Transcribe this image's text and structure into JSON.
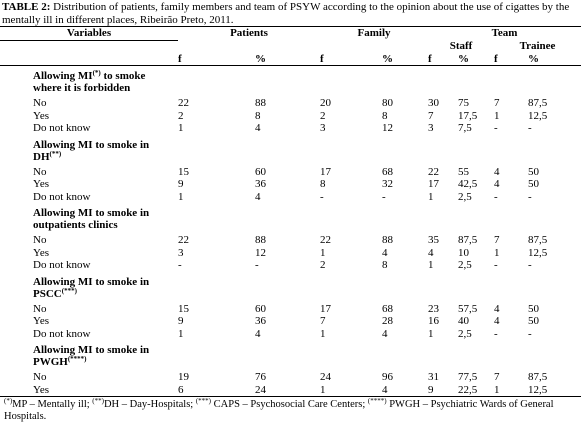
{
  "caption": {
    "label": "TABLE 2:",
    "text": " Distribution of patients, family members and team of PSYW according to the opinion about the use of cigattes by the mentally ill in different places, Ribeirão Preto, 2011."
  },
  "header": {
    "variables": "Variables",
    "groups": [
      "Patients",
      "Family",
      "Team"
    ],
    "subgroups": [
      "Staff",
      "Trainee"
    ],
    "columns": [
      "f",
      "%",
      "f",
      "%",
      "f",
      "%",
      "f",
      "%"
    ]
  },
  "sections": [
    {
      "title": [
        {
          "text": "Allowing MI"
        },
        {
          "text": "(*)",
          "sup": true
        },
        {
          "text": " to smoke where it is forbidden"
        }
      ],
      "rows": [
        [
          "No",
          "22",
          "88",
          "20",
          "80",
          "30",
          "75",
          "7",
          "87,5"
        ],
        [
          "Yes",
          "2",
          "8",
          "2",
          "8",
          "7",
          "17,5",
          "1",
          "12,5"
        ],
        [
          "Do not know",
          "1",
          "4",
          "3",
          "12",
          "3",
          "7,5",
          "-",
          "-"
        ]
      ]
    },
    {
      "title": [
        {
          "text": "Allowing MI to smoke in DH"
        },
        {
          "text": "(**)",
          "sup": true
        }
      ],
      "rows": [
        [
          "No",
          "15",
          "60",
          "17",
          "68",
          "22",
          "55",
          "4",
          "50"
        ],
        [
          "Yes",
          "9",
          "36",
          "8",
          "32",
          "17",
          "42,5",
          "4",
          "50"
        ],
        [
          "Do not know",
          "1",
          "4",
          "-",
          "-",
          "1",
          "2,5",
          "-",
          "-"
        ]
      ]
    },
    {
      "title": [
        {
          "text": "Allowing MI to smoke in outpatients clinics"
        }
      ],
      "rows": [
        [
          "No",
          "22",
          "88",
          "22",
          "88",
          "35",
          "87,5",
          "7",
          "87,5"
        ],
        [
          "Yes",
          "3",
          "12",
          "1",
          "4",
          "4",
          "10",
          "1",
          "12,5"
        ],
        [
          "Do not know",
          "-",
          "-",
          "2",
          "8",
          "1",
          "2,5",
          "-",
          "-"
        ]
      ]
    },
    {
      "title": [
        {
          "text": "Allowing MI to smoke in PSCC"
        },
        {
          "text": "(***)",
          "sup": true
        }
      ],
      "rows": [
        [
          "No",
          "15",
          "60",
          "17",
          "68",
          "23",
          "57,5",
          "4",
          "50"
        ],
        [
          "Yes",
          "9",
          "36",
          "7",
          "28",
          "16",
          "40",
          "4",
          "50"
        ],
        [
          "Do not know",
          "1",
          "4",
          "1",
          "4",
          "1",
          "2,5",
          "-",
          "-"
        ]
      ]
    },
    {
      "title": [
        {
          "text": "Allowing MI to smoke in PWGH"
        },
        {
          "text": "(****)",
          "sup": true
        }
      ],
      "rows": [
        [
          "No",
          "19",
          "76",
          "24",
          "96",
          "31",
          "77,5",
          "7",
          "87,5"
        ],
        [
          "Yes",
          "6",
          "24",
          "1",
          "4",
          "9",
          "22,5",
          "1",
          "12,5"
        ]
      ]
    }
  ],
  "footnote": [
    {
      "text": "(*)",
      "sup": true
    },
    {
      "text": "MP – Mentally ill; "
    },
    {
      "text": "(**)",
      "sup": true
    },
    {
      "text": "DH – Day-Hospitals; "
    },
    {
      "text": "(***)",
      "sup": true
    },
    {
      "text": " CAPS – Psychosocial Care Centers; "
    },
    {
      "text": "(****)",
      "sup": true
    },
    {
      "text": " PWGH – Psychiatric Wards of General Hospitals."
    }
  ]
}
